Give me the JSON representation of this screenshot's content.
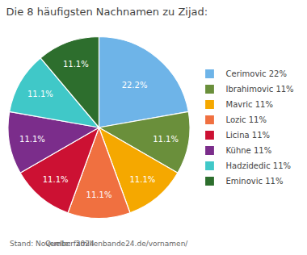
{
  "chart_data": {
    "type": "pie",
    "title": "Die 8 häufigsten Nachnamen zu Zijad:",
    "categories": [
      "Cerimovic 22%",
      "Ibrahimovic 11%",
      "Mavric 11%",
      "Lozic 11%",
      "Licina 11%",
      "Kühne 11%",
      "Hadzidedic 11%",
      "Eminovic 11%"
    ],
    "values": [
      22.2,
      11.1,
      11.1,
      11.1,
      11.1,
      11.1,
      11.1,
      11.1
    ],
    "value_labels": [
      "22.2%",
      "11.1%",
      "11.1%",
      "11.1%",
      "11.1%",
      "11.1%",
      "11.1%",
      "11.1%"
    ],
    "data_labels": true,
    "colors": [
      "#6eb4e8",
      "#6a8f3b",
      "#f5a800",
      "#f07040",
      "#cc1133",
      "#7b2d8b",
      "#40c8c8",
      "#2d6e2d"
    ],
    "legend": "right",
    "annotations": [
      "Stand: November 2024",
      "Quelle: familienbande24.de/vornamen/"
    ]
  }
}
